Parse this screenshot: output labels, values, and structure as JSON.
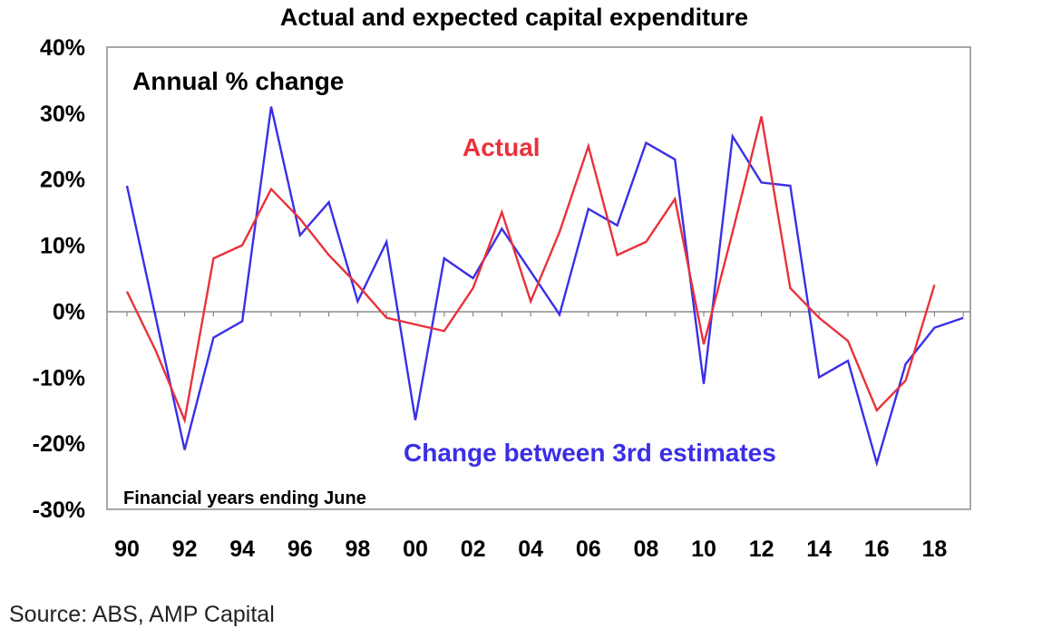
{
  "chart_data": {
    "type": "line",
    "title": "Actual and expected capital expenditure",
    "subtitle": "Annual % change",
    "note": "Financial years ending June",
    "ylim": [
      -30,
      40
    ],
    "yticks": [
      "40%",
      "30%",
      "20%",
      "10%",
      "0%",
      "-10%",
      "-20%",
      "-30%"
    ],
    "ytick_values": [
      40,
      30,
      20,
      10,
      0,
      -10,
      -20,
      -30
    ],
    "xticks": [
      "90",
      "92",
      "94",
      "96",
      "98",
      "00",
      "02",
      "04",
      "06",
      "08",
      "10",
      "12",
      "14",
      "16",
      "18"
    ],
    "grid": false,
    "zero_line": true,
    "series": [
      {
        "name": "Actual",
        "color": "#e8323c",
        "x": [
          1990,
          1991,
          1992,
          1993,
          1994,
          1995,
          1996,
          1997,
          1998,
          1999,
          2000,
          2001,
          2002,
          2003,
          2004,
          2005,
          2006,
          2007,
          2008,
          2009,
          2010,
          2011,
          2012,
          2013,
          2014,
          2015,
          2016,
          2017,
          2018
        ],
        "values": [
          3,
          -6,
          -16.5,
          8,
          10,
          18.5,
          14,
          8.5,
          4,
          -1,
          -2,
          -3,
          3.5,
          15,
          1.5,
          12,
          25,
          8.5,
          10.5,
          17,
          -5,
          12,
          29.5,
          3.5,
          -1,
          -4.5,
          -15,
          -10.5,
          4
        ]
      },
      {
        "name": "Change between 3rd estimates",
        "color": "#3a2fe6",
        "x": [
          1990,
          1991,
          1992,
          1993,
          1994,
          1995,
          1996,
          1997,
          1998,
          1999,
          2000,
          2001,
          2002,
          2003,
          2004,
          2005,
          2006,
          2007,
          2008,
          2009,
          2010,
          2011,
          2012,
          2013,
          2014,
          2015,
          2016,
          2017,
          2018,
          2019
        ],
        "values": [
          19,
          -1,
          -21,
          -4,
          -1.5,
          31,
          11.5,
          16.5,
          1.5,
          10.5,
          -16.5,
          8,
          5,
          12.5,
          6,
          -0.5,
          15.5,
          13,
          25.5,
          23,
          -11,
          26.5,
          19.5,
          19,
          -10,
          -7.5,
          -23,
          -8,
          -2.5,
          -1
        ]
      }
    ]
  },
  "source": "Source: ABS, AMP Capital"
}
